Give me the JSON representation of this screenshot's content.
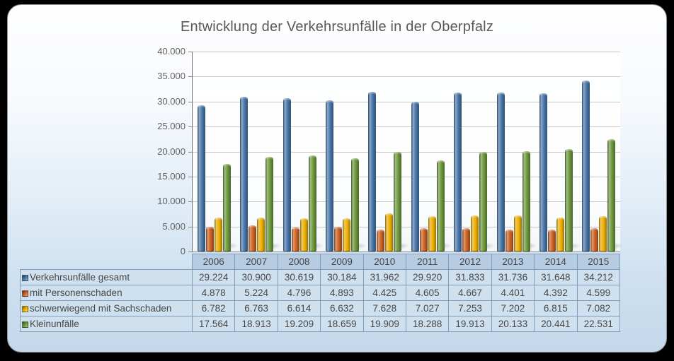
{
  "title": "Entwicklung der Verkehrsunfälle in der Oberpfalz",
  "chart_data": {
    "type": "bar",
    "title": "Entwicklung der Verkehrsunfälle in der Oberpfalz",
    "categories": [
      "2006",
      "2007",
      "2008",
      "2009",
      "2010",
      "2011",
      "2012",
      "2013",
      "2014",
      "2015"
    ],
    "series": [
      {
        "name": "Verkehrsunfälle gesamt",
        "color": "#4674a8",
        "values": [
          29224,
          30900,
          30619,
          30184,
          31962,
          29920,
          31833,
          31736,
          31648,
          34212
        ]
      },
      {
        "name": "mit Personenschaden",
        "color": "#cb5f1f",
        "values": [
          4878,
          5224,
          4796,
          4893,
          4425,
          4605,
          4667,
          4401,
          4392,
          4599
        ]
      },
      {
        "name": "schwerwiegend mit Sachschaden",
        "color": "#ecae00",
        "values": [
          6782,
          6763,
          6614,
          6632,
          7628,
          7027,
          7253,
          7202,
          6815,
          7082
        ]
      },
      {
        "name": "Kleinunfälle",
        "color": "#6b9639",
        "values": [
          17564,
          18913,
          19209,
          18659,
          19909,
          18288,
          19913,
          20133,
          20441,
          22531
        ]
      }
    ],
    "ylim": [
      0,
      40000
    ],
    "ytick_step": 5000,
    "ytick_labels": [
      "0",
      "5.000",
      "10.000",
      "15.000",
      "20.000",
      "25.000",
      "30.000",
      "35.000",
      "40.000"
    ],
    "grid": true,
    "bar_style": "cylinder-3d",
    "legend_position": "table-below-chart",
    "value_format": "thousands-separated-with-dot"
  },
  "colors": {
    "slide_background_top": "#fefeff",
    "slide_background_bottom": "#c3d8eb",
    "table_header_fill": "#b6cce3",
    "table_cell_fill": "#cfe0ef",
    "table_border": "#7f9cba",
    "gridline": "#c7c7c7",
    "title_text": "#595959",
    "axis_text": "#636363",
    "page_surround": "#000000"
  }
}
